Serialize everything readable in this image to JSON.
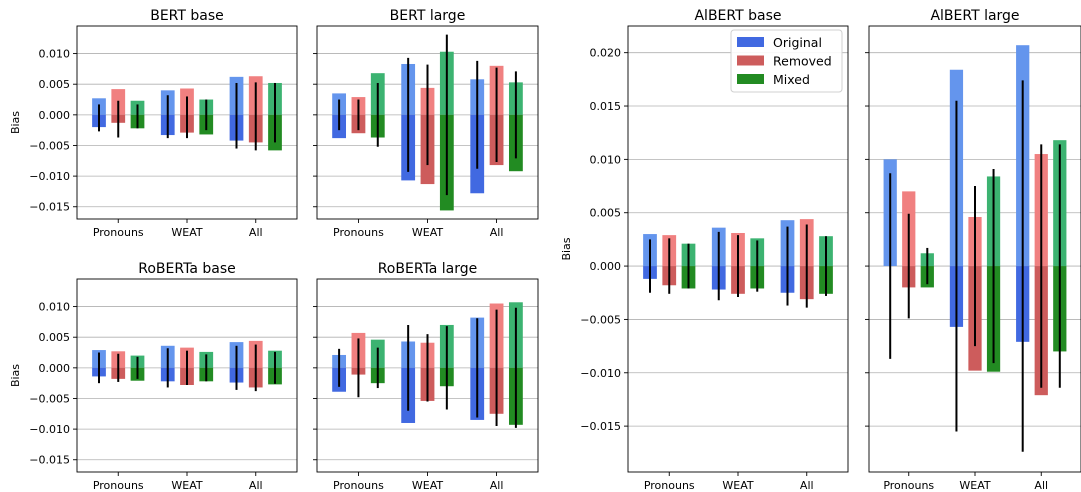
{
  "chart_data": [
    {
      "type": "bar",
      "title": "BERT base",
      "ylabel": "Bias",
      "categories": [
        "Pronouns",
        "WEAT",
        "All"
      ],
      "ylim": [
        -0.017,
        0.0145
      ],
      "yticks": [
        -0.015,
        -0.01,
        -0.005,
        0.0,
        0.005,
        0.01
      ],
      "ytick_labels": [
        "−0.015",
        "−0.010",
        "−0.005",
        "0.000",
        "0.005",
        "0.010"
      ],
      "grid": "y",
      "series": [
        {
          "name": "Original",
          "pos": [
            0.0027,
            0.004,
            0.0062
          ],
          "neg": [
            -0.002,
            -0.0033,
            -0.0042
          ],
          "err_hi": [
            0.0017,
            0.0032,
            0.0052
          ],
          "err_lo": [
            -0.0027,
            -0.0038,
            -0.0055
          ]
        },
        {
          "name": "Removed",
          "pos": [
            0.0042,
            0.0043,
            0.0063
          ],
          "neg": [
            -0.0013,
            -0.0029,
            -0.0045
          ],
          "err_hi": [
            0.0023,
            0.003,
            0.0053
          ],
          "err_lo": [
            -0.0037,
            -0.0038,
            -0.0058
          ]
        },
        {
          "name": "Mixed",
          "pos": [
            0.0023,
            0.0025,
            0.0052
          ],
          "neg": [
            -0.0022,
            -0.0032,
            -0.0058
          ],
          "err_hi": [
            0.0017,
            0.0025,
            0.0052
          ],
          "err_lo": [
            -0.0022,
            -0.0025,
            -0.0045
          ]
        }
      ]
    },
    {
      "type": "bar",
      "title": "BERT large",
      "categories": [
        "Pronouns",
        "WEAT",
        "All"
      ],
      "ylim": [
        -0.017,
        0.0145
      ],
      "yticks": [
        -0.015,
        -0.01,
        -0.005,
        0.0,
        0.005,
        0.01
      ],
      "grid": "y",
      "series": [
        {
          "name": "Original",
          "pos": [
            0.0035,
            0.0083,
            0.0058
          ],
          "neg": [
            -0.0038,
            -0.0107,
            -0.0128
          ],
          "err_hi": [
            0.0025,
            0.0093,
            0.0088
          ],
          "err_lo": [
            -0.0025,
            -0.0093,
            -0.0088
          ]
        },
        {
          "name": "Removed",
          "pos": [
            0.0029,
            0.0044,
            0.008
          ],
          "neg": [
            -0.003,
            -0.0113,
            -0.0082
          ],
          "err_hi": [
            0.0025,
            0.0082,
            0.0077
          ],
          "err_lo": [
            -0.0025,
            -0.0082,
            -0.0077
          ]
        },
        {
          "name": "Mixed",
          "pos": [
            0.0068,
            0.0103,
            0.0053
          ],
          "neg": [
            -0.0037,
            -0.0156,
            -0.0092
          ],
          "err_hi": [
            0.0052,
            0.0131,
            0.0071
          ],
          "err_lo": [
            -0.0052,
            -0.0131,
            -0.0071
          ]
        }
      ]
    },
    {
      "type": "bar",
      "title": "RoBERTa base",
      "ylabel": "Bias",
      "categories": [
        "Pronouns",
        "WEAT",
        "All"
      ],
      "ylim": [
        -0.017,
        0.0145
      ],
      "yticks": [
        -0.015,
        -0.01,
        -0.005,
        0.0,
        0.005,
        0.01
      ],
      "ytick_labels": [
        "−0.015",
        "−0.010",
        "−0.005",
        "0.000",
        "0.005",
        "0.010"
      ],
      "grid": "y",
      "series": [
        {
          "name": "Original",
          "pos": [
            0.0029,
            0.0036,
            0.0042
          ],
          "neg": [
            -0.0014,
            -0.0022,
            -0.0024
          ],
          "err_hi": [
            0.0025,
            0.0032,
            0.0036
          ],
          "err_lo": [
            -0.0025,
            -0.0032,
            -0.0036
          ]
        },
        {
          "name": "Removed",
          "pos": [
            0.0027,
            0.0033,
            0.0044
          ],
          "neg": [
            -0.0018,
            -0.0028,
            -0.0032
          ],
          "err_hi": [
            0.0023,
            0.0028,
            0.0038
          ],
          "err_lo": [
            -0.0023,
            -0.0028,
            -0.0038
          ]
        },
        {
          "name": "Mixed",
          "pos": [
            0.002,
            0.0026,
            0.0028
          ],
          "neg": [
            -0.0021,
            -0.0022,
            -0.0027
          ],
          "err_hi": [
            0.0018,
            0.0022,
            0.0026
          ],
          "err_lo": [
            -0.0018,
            -0.0022,
            -0.0026
          ]
        }
      ]
    },
    {
      "type": "bar",
      "title": "RoBERTa large",
      "categories": [
        "Pronouns",
        "WEAT",
        "All"
      ],
      "ylim": [
        -0.017,
        0.0145
      ],
      "yticks": [
        -0.015,
        -0.01,
        -0.005,
        0.0,
        0.005,
        0.01
      ],
      "grid": "y",
      "series": [
        {
          "name": "Original",
          "pos": [
            0.0021,
            0.0043,
            0.0082
          ],
          "neg": [
            -0.0039,
            -0.009,
            -0.0085
          ],
          "err_hi": [
            0.0031,
            0.007,
            0.0081
          ],
          "err_lo": [
            -0.0031,
            -0.007,
            -0.0081
          ]
        },
        {
          "name": "Removed",
          "pos": [
            0.0057,
            0.0041,
            0.0105
          ],
          "neg": [
            -0.0011,
            -0.0054,
            -0.0075
          ],
          "err_hi": [
            0.0048,
            0.0055,
            0.0095
          ],
          "err_lo": [
            -0.0048,
            -0.0055,
            -0.0095
          ]
        },
        {
          "name": "Mixed",
          "pos": [
            0.0046,
            0.007,
            0.0107
          ],
          "neg": [
            -0.0025,
            -0.003,
            -0.0093
          ],
          "err_hi": [
            0.0033,
            0.0068,
            0.0098
          ],
          "err_lo": [
            -0.0033,
            -0.0068,
            -0.0098
          ]
        }
      ]
    },
    {
      "type": "bar",
      "title": "AlBERT base",
      "ylabel": "Bias",
      "categories": [
        "Pronouns",
        "WEAT",
        "All"
      ],
      "ylim": [
        -0.0193,
        0.0225
      ],
      "yticks": [
        -0.015,
        -0.01,
        -0.005,
        0.0,
        0.005,
        0.01,
        0.015,
        0.02
      ],
      "ytick_labels": [
        "−0.015",
        "−0.010",
        "−0.005",
        "0.000",
        "0.005",
        "0.010",
        "0.015",
        "0.020"
      ],
      "grid": "y",
      "legend": "top-right",
      "series": [
        {
          "name": "Original",
          "pos": [
            0.003,
            0.0036,
            0.0043
          ],
          "neg": [
            -0.0012,
            -0.0022,
            -0.0025
          ],
          "err_hi": [
            0.0025,
            0.0032,
            0.0037
          ],
          "err_lo": [
            -0.0025,
            -0.0032,
            -0.0037
          ]
        },
        {
          "name": "Removed",
          "pos": [
            0.0029,
            0.0031,
            0.0044
          ],
          "neg": [
            -0.0018,
            -0.0026,
            -0.0031
          ],
          "err_hi": [
            0.0026,
            0.0029,
            0.0039
          ],
          "err_lo": [
            -0.0026,
            -0.0029,
            -0.0039
          ]
        },
        {
          "name": "Mixed",
          "pos": [
            0.0021,
            0.0026,
            0.0028
          ],
          "neg": [
            -0.0021,
            -0.0021,
            -0.0026
          ],
          "err_hi": [
            0.0021,
            0.0024,
            0.0028
          ],
          "err_lo": [
            -0.0021,
            -0.0024,
            -0.0028
          ]
        }
      ]
    },
    {
      "type": "bar",
      "title": "AlBERT large",
      "categories": [
        "Pronouns",
        "WEAT",
        "All"
      ],
      "ylim": [
        -0.0193,
        0.0225
      ],
      "yticks": [
        -0.015,
        -0.01,
        -0.005,
        0.0,
        0.005,
        0.01,
        0.015,
        0.02
      ],
      "grid": "y",
      "series": [
        {
          "name": "Original",
          "pos": [
            0.01,
            0.0184,
            0.0207
          ],
          "neg": [
            0.0,
            -0.0057,
            -0.0071
          ],
          "err_hi": [
            0.0087,
            0.0155,
            0.0174
          ],
          "err_lo": [
            -0.0087,
            -0.0155,
            -0.0174
          ]
        },
        {
          "name": "Removed",
          "pos": [
            0.007,
            0.0046,
            0.0105
          ],
          "neg": [
            -0.002,
            -0.0098,
            -0.0121
          ],
          "err_hi": [
            0.0049,
            0.0075,
            0.0114
          ],
          "err_lo": [
            -0.0049,
            -0.0075,
            -0.0114
          ]
        },
        {
          "name": "Mixed",
          "pos": [
            0.0012,
            0.0084,
            0.0118
          ],
          "neg": [
            -0.002,
            -0.0099,
            -0.008
          ],
          "err_hi": [
            0.0017,
            0.0091,
            0.0114
          ],
          "err_lo": [
            -0.0017,
            -0.0091,
            -0.0114
          ]
        }
      ]
    }
  ],
  "legend": {
    "items": [
      {
        "label": "Original",
        "color": "#4169e1"
      },
      {
        "label": "Removed",
        "color": "#cd5c5c"
      },
      {
        "label": "Mixed",
        "color": "#228b22"
      }
    ]
  },
  "colors": {
    "series_light": [
      "#6495ed",
      "#f08080",
      "#3cb371"
    ],
    "series_dark": [
      "#4169e1",
      "#cd5c5c",
      "#228b22"
    ],
    "grid": "#b0b0b0",
    "errorbar": "#000000"
  }
}
